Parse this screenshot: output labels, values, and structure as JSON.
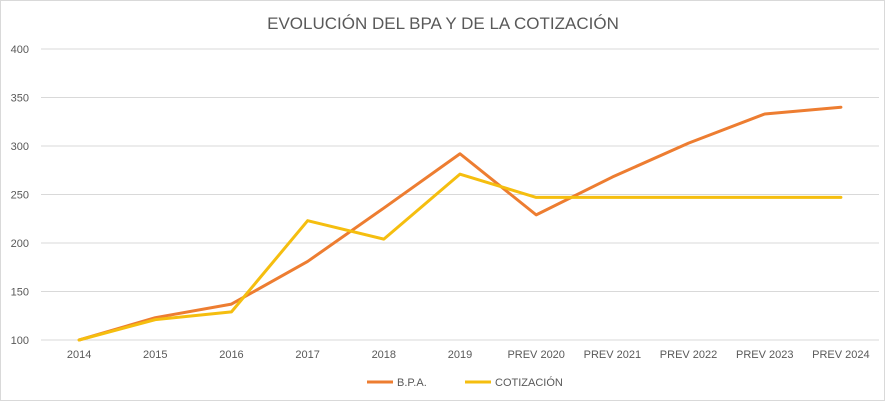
{
  "chart_data": {
    "type": "line",
    "title": "EVOLUCIÓN DEL BPA Y DE LA COTIZACIÓN",
    "xlabel": "",
    "ylabel": "",
    "categories": [
      "2014",
      "2015",
      "2016",
      "2017",
      "2018",
      "2019",
      "PREV 2020",
      "PREV 2021",
      "PREV 2022",
      "PREV 2023",
      "PREV 2024"
    ],
    "ylim": [
      100,
      400
    ],
    "yticks": [
      100,
      150,
      200,
      250,
      300,
      350,
      400
    ],
    "grid": true,
    "legend_position": "bottom",
    "series": [
      {
        "name": "B.P.A.",
        "color": "#ED7D31",
        "values": [
          100,
          123,
          137,
          181,
          236,
          292,
          229,
          268,
          303,
          333,
          340
        ]
      },
      {
        "name": "COTIZACIÓN",
        "color": "#F5BE0F",
        "values": [
          100,
          121,
          129,
          223,
          204,
          271,
          247,
          247,
          247,
          247,
          247
        ]
      }
    ]
  }
}
